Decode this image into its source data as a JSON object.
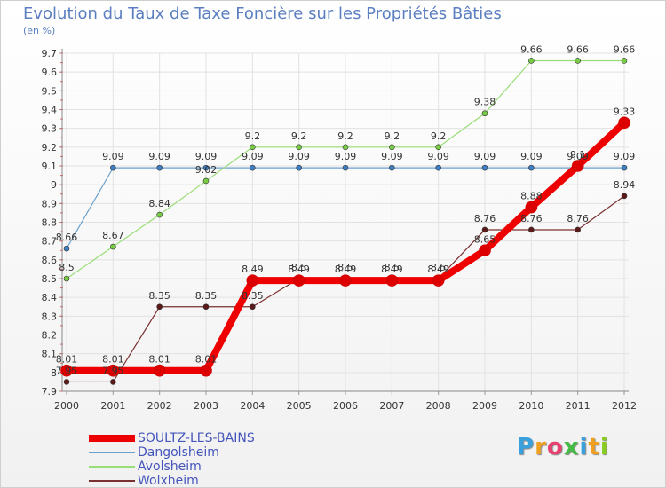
{
  "chart_data": {
    "type": "line",
    "title": "Evolution du Taux de Taxe Foncière sur les Propriétés Bâties",
    "subtitle": "(en %)",
    "x": [
      "2000",
      "2001",
      "2002",
      "2003",
      "2004",
      "2005",
      "2006",
      "2007",
      "2008",
      "2009",
      "2010",
      "2011",
      "2012"
    ],
    "ylim": [
      7.9,
      9.7
    ],
    "yticks": [
      "7.9",
      "8",
      "8.1",
      "8.2",
      "8.3",
      "8.4",
      "8.5",
      "8.6",
      "8.7",
      "8.8",
      "8.9",
      "9",
      "9.1",
      "9.2",
      "9.3",
      "9.4",
      "9.5",
      "9.6",
      "9.7"
    ],
    "series": [
      {
        "name": "SOULTZ-LES-BAINS",
        "color": "#ee0000",
        "marker": "#dd0000",
        "width": 8,
        "values": [
          8.01,
          8.01,
          8.01,
          8.01,
          8.49,
          8.49,
          8.49,
          8.49,
          8.49,
          8.65,
          8.88,
          9.1,
          9.33
        ],
        "labels": [
          "8.01",
          "8.01",
          "8.01",
          "8.01",
          "8.49",
          "8.49",
          "8.49",
          "8.49",
          "8.49",
          "8.65",
          "8.88",
          "9.1",
          "9.33"
        ]
      },
      {
        "name": "Dangolsheim",
        "color": "#6aa0cc",
        "marker": "#3d7fc4",
        "width": 1.2,
        "values": [
          8.66,
          9.09,
          9.09,
          9.09,
          9.09,
          9.09,
          9.09,
          9.09,
          9.09,
          9.09,
          9.09,
          9.09,
          9.09
        ],
        "labels": [
          "8.66",
          "9.09",
          "9.09",
          "9.09",
          "9.09",
          "9.09",
          "9.09",
          "9.09",
          "9.09",
          "9.09",
          "9.09",
          "9.09",
          "9.09"
        ]
      },
      {
        "name": "Avolsheim",
        "color": "#99dd77",
        "marker": "#77cc44",
        "width": 1.2,
        "values": [
          8.5,
          8.67,
          8.84,
          9.02,
          9.2,
          9.2,
          9.2,
          9.2,
          9.2,
          9.38,
          9.66,
          9.66,
          9.66
        ],
        "labels": [
          "8.5",
          "8.67",
          "8.84",
          "9.02",
          "9.2",
          "9.2",
          "9.2",
          "9.2",
          "9.2",
          "9.38",
          "9.66",
          "9.66",
          "9.66"
        ]
      },
      {
        "name": "Wolxheim",
        "color": "#7a3030",
        "marker": "#5a1a1a",
        "width": 1.2,
        "values": [
          7.95,
          7.95,
          8.35,
          8.35,
          8.35,
          8.5,
          8.5,
          8.5,
          8.5,
          8.76,
          8.76,
          8.76,
          8.94
        ],
        "labels": [
          "7.95",
          "7.95",
          "8.35",
          "8.35",
          "8.35",
          "8.5",
          "8.5",
          "8.5",
          "8.5",
          "8.76",
          "8.76",
          "8.76",
          "8.94"
        ]
      }
    ]
  },
  "logo": {
    "text": "Proxiti",
    "colors": [
      "#3aa0dd",
      "#f0a020",
      "#e84070",
      "#44bb44",
      "#3aa0dd",
      "#f0a020",
      "#88cc22"
    ]
  }
}
